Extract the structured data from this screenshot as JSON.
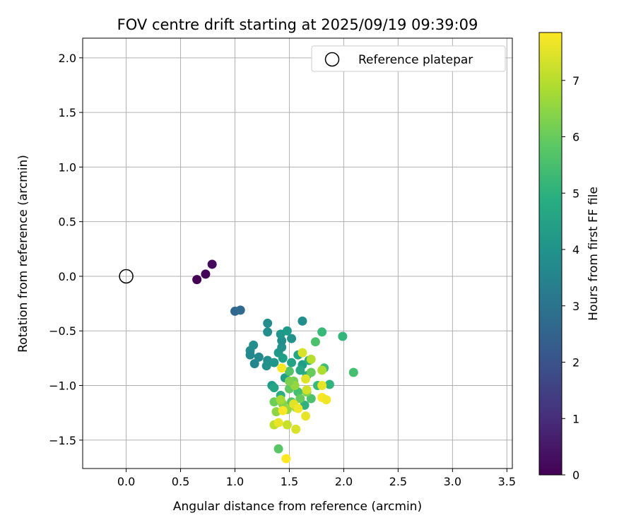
{
  "chart_data": {
    "type": "scatter",
    "title": "FOV centre drift starting at 2025/09/19 09:39:09",
    "xlabel": "Angular distance from reference (arcmin)",
    "ylabel": "Rotation from reference (arcmin)",
    "xlim": [
      -0.4,
      3.55
    ],
    "ylim": [
      -1.76,
      2.18
    ],
    "xticks": [
      "0.0",
      "0.5",
      "1.0",
      "1.5",
      "2.0",
      "2.5",
      "3.0",
      "3.5"
    ],
    "yticks": [
      "−1.5",
      "−1.0",
      "−0.5",
      "0.0",
      "0.5",
      "1.0",
      "1.5",
      "2.0"
    ],
    "grid": true,
    "legend": {
      "position": "top-right",
      "entries": [
        "Reference platepar"
      ]
    },
    "reference_point": {
      "x": 0.0,
      "y": 0.0
    },
    "colorbar": {
      "label": "Hours from first FF file",
      "min": 0,
      "max": 7.85,
      "ticks": [
        "0",
        "1",
        "2",
        "3",
        "4",
        "5",
        "6",
        "7"
      ],
      "colormap": "viridis"
    },
    "points": [
      {
        "x": 0.65,
        "y": -0.03,
        "h": 0.0
      },
      {
        "x": 0.73,
        "y": 0.02,
        "h": 0.1
      },
      {
        "x": 0.79,
        "y": 0.11,
        "h": 0.2
      },
      {
        "x": 1.0,
        "y": -0.32,
        "h": 2.6
      },
      {
        "x": 1.05,
        "y": -0.31,
        "h": 2.7
      },
      {
        "x": 1.3,
        "y": -0.43,
        "h": 3.8
      },
      {
        "x": 1.3,
        "y": -0.51,
        "h": 3.9
      },
      {
        "x": 1.17,
        "y": -0.63,
        "h": 3.9
      },
      {
        "x": 1.14,
        "y": -0.68,
        "h": 3.8
      },
      {
        "x": 1.14,
        "y": -0.72,
        "h": 3.7
      },
      {
        "x": 1.18,
        "y": -0.8,
        "h": 3.6
      },
      {
        "x": 1.22,
        "y": -0.74,
        "h": 3.7
      },
      {
        "x": 1.3,
        "y": -0.77,
        "h": 3.9
      },
      {
        "x": 1.29,
        "y": -0.82,
        "h": 4.0
      },
      {
        "x": 1.36,
        "y": -0.79,
        "h": 4.1
      },
      {
        "x": 1.4,
        "y": -0.7,
        "h": 4.2
      },
      {
        "x": 1.43,
        "y": -0.65,
        "h": 4.0
      },
      {
        "x": 1.43,
        "y": -0.59,
        "h": 3.9
      },
      {
        "x": 1.42,
        "y": -0.53,
        "h": 4.1
      },
      {
        "x": 1.48,
        "y": -0.5,
        "h": 4.3
      },
      {
        "x": 1.52,
        "y": -0.57,
        "h": 4.0
      },
      {
        "x": 1.62,
        "y": -0.41,
        "h": 3.9
      },
      {
        "x": 1.44,
        "y": -0.75,
        "h": 4.4
      },
      {
        "x": 1.52,
        "y": -0.79,
        "h": 4.5
      },
      {
        "x": 1.58,
        "y": -0.72,
        "h": 4.6
      },
      {
        "x": 1.62,
        "y": -0.81,
        "h": 4.4
      },
      {
        "x": 1.6,
        "y": -0.86,
        "h": 4.7
      },
      {
        "x": 1.68,
        "y": -0.77,
        "h": 4.8
      },
      {
        "x": 1.74,
        "y": -0.6,
        "h": 5.6
      },
      {
        "x": 1.8,
        "y": -0.51,
        "h": 5.3
      },
      {
        "x": 1.99,
        "y": -0.55,
        "h": 5.2
      },
      {
        "x": 1.82,
        "y": -0.84,
        "h": 5.4
      },
      {
        "x": 1.87,
        "y": -0.99,
        "h": 5.1
      },
      {
        "x": 2.09,
        "y": -0.88,
        "h": 5.5
      },
      {
        "x": 1.66,
        "y": -0.91,
        "h": 4.9
      },
      {
        "x": 1.7,
        "y": -0.88,
        "h": 6.0
      },
      {
        "x": 1.76,
        "y": -1.0,
        "h": 5.3
      },
      {
        "x": 1.7,
        "y": -1.12,
        "h": 5.6
      },
      {
        "x": 1.64,
        "y": -1.18,
        "h": 5.0
      },
      {
        "x": 1.34,
        "y": -1.0,
        "h": 4.3
      },
      {
        "x": 1.36,
        "y": -1.02,
        "h": 4.6
      },
      {
        "x": 1.42,
        "y": -1.09,
        "h": 4.9
      },
      {
        "x": 1.46,
        "y": -0.93,
        "h": 4.4
      },
      {
        "x": 1.5,
        "y": -0.87,
        "h": 5.7
      },
      {
        "x": 1.5,
        "y": -1.03,
        "h": 5.9
      },
      {
        "x": 1.54,
        "y": -0.96,
        "h": 6.2
      },
      {
        "x": 1.52,
        "y": -1.15,
        "h": 5.8
      },
      {
        "x": 1.58,
        "y": -1.06,
        "h": 5.5
      },
      {
        "x": 1.6,
        "y": -1.12,
        "h": 6.0
      },
      {
        "x": 1.66,
        "y": -1.06,
        "h": 6.3
      },
      {
        "x": 1.36,
        "y": -1.15,
        "h": 6.1
      },
      {
        "x": 1.38,
        "y": -1.24,
        "h": 6.5
      },
      {
        "x": 1.44,
        "y": -1.17,
        "h": 6.4
      },
      {
        "x": 1.48,
        "y": -1.22,
        "h": 6.6
      },
      {
        "x": 1.42,
        "y": -1.13,
        "h": 6.8
      },
      {
        "x": 1.56,
        "y": -1.2,
        "h": 6.7
      },
      {
        "x": 1.4,
        "y": -1.58,
        "h": 5.8
      },
      {
        "x": 1.48,
        "y": -1.36,
        "h": 7.2
      },
      {
        "x": 1.56,
        "y": -1.4,
        "h": 7.4
      },
      {
        "x": 1.36,
        "y": -1.36,
        "h": 7.1
      },
      {
        "x": 1.4,
        "y": -1.34,
        "h": 7.6
      },
      {
        "x": 1.44,
        "y": -1.23,
        "h": 7.8
      },
      {
        "x": 1.54,
        "y": -1.17,
        "h": 7.5
      },
      {
        "x": 1.58,
        "y": -1.21,
        "h": 7.7
      },
      {
        "x": 1.65,
        "y": -1.28,
        "h": 7.6
      },
      {
        "x": 1.66,
        "y": -1.04,
        "h": 7.3
      },
      {
        "x": 1.65,
        "y": -0.94,
        "h": 7.5
      },
      {
        "x": 1.7,
        "y": -0.76,
        "h": 7.0
      },
      {
        "x": 1.62,
        "y": -0.7,
        "h": 7.4
      },
      {
        "x": 1.8,
        "y": -1.0,
        "h": 7.6
      },
      {
        "x": 1.8,
        "y": -1.11,
        "h": 7.8
      },
      {
        "x": 1.84,
        "y": -1.13,
        "h": 7.7
      },
      {
        "x": 1.43,
        "y": -0.84,
        "h": 7.8
      },
      {
        "x": 1.47,
        "y": -1.67,
        "h": 7.9
      },
      {
        "x": 1.8,
        "y": -0.86,
        "h": 6.9
      },
      {
        "x": 1.55,
        "y": -1.0,
        "h": 6.6
      },
      {
        "x": 1.5,
        "y": -0.96,
        "h": 6.3
      }
    ]
  }
}
